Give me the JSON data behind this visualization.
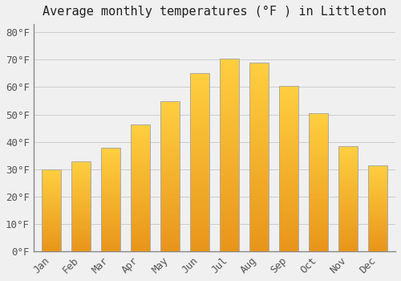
{
  "title": "Average monthly temperatures (°F ) in Littleton",
  "months": [
    "Jan",
    "Feb",
    "Mar",
    "Apr",
    "May",
    "Jun",
    "Jul",
    "Aug",
    "Sep",
    "Oct",
    "Nov",
    "Dec"
  ],
  "values": [
    30,
    33,
    38,
    46.5,
    55,
    65,
    70.5,
    69,
    60.5,
    50.5,
    38.5,
    31.5
  ],
  "bar_color_bottom": "#E8951A",
  "bar_color_top": "#FFCF40",
  "bar_edge_color": "#AAAAAA",
  "background_color": "#F0F0F0",
  "grid_color": "#CCCCCC",
  "yticks": [
    0,
    10,
    20,
    30,
    40,
    50,
    60,
    70,
    80
  ],
  "ylim": [
    0,
    83
  ],
  "title_fontsize": 11,
  "tick_fontsize": 9,
  "font_family": "monospace"
}
